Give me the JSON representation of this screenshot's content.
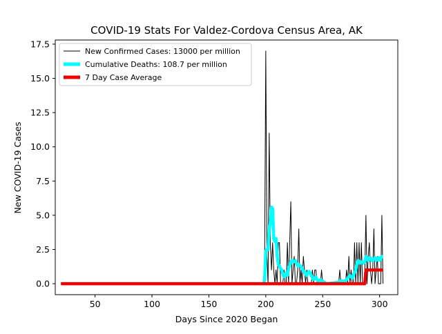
{
  "chart_data": {
    "type": "line",
    "title": "COVID-19 Stats For Valdez-Cordova Census Area, AK",
    "xlabel": "Days Since 2020 Began",
    "ylabel": "New COVID-19 Cases",
    "xlim": [
      15,
      316
    ],
    "ylim": [
      -0.8,
      17.8
    ],
    "xticks": [
      50,
      100,
      150,
      200,
      250,
      300
    ],
    "xtick_labels": [
      "50",
      "100",
      "150",
      "200",
      "250",
      "300"
    ],
    "yticks": [
      0,
      2.5,
      5,
      7.5,
      10,
      12.5,
      15,
      17.5
    ],
    "ytick_labels": [
      "0.0",
      "2.5",
      "5.0",
      "7.5",
      "10.0",
      "12.5",
      "15.0",
      "17.5"
    ],
    "grid": false,
    "legend_position": "top-left",
    "series": [
      {
        "name": "New Confirmed Cases: 13000 per million",
        "color": "#000000",
        "x": [
          20,
          198,
          199,
          200,
          201,
          202,
          203,
          204,
          205,
          206,
          207,
          208,
          209,
          210,
          211,
          212,
          213,
          214,
          215,
          216,
          217,
          218,
          219,
          220,
          221,
          222,
          223,
          224,
          225,
          226,
          227,
          228,
          229,
          230,
          231,
          232,
          233,
          234,
          235,
          236,
          237,
          238,
          239,
          240,
          241,
          242,
          243,
          244,
          245,
          246,
          247,
          248,
          249,
          250,
          251,
          252,
          253,
          264,
          265,
          266,
          267,
          268,
          269,
          270,
          271,
          272,
          273,
          274,
          275,
          276,
          277,
          278,
          279,
          280,
          281,
          282,
          283,
          284,
          285,
          286,
          287,
          288,
          289,
          290,
          291,
          292,
          293,
          294,
          295,
          296,
          297,
          298,
          299,
          300,
          301,
          302,
          303
        ],
        "y": [
          0,
          0,
          2,
          17,
          2,
          0,
          11,
          3,
          1,
          3,
          1,
          0,
          1,
          0,
          3,
          3,
          0,
          0,
          0,
          1,
          0,
          0,
          3,
          0,
          3,
          6,
          0,
          1,
          2,
          0,
          0,
          1,
          4,
          0,
          1,
          0,
          2,
          1,
          0,
          1,
          0,
          0,
          0,
          0,
          1,
          0,
          1,
          1,
          0,
          0,
          0,
          0,
          1,
          0,
          0,
          0,
          0,
          0,
          1,
          0,
          0,
          0,
          0,
          0,
          1,
          0,
          2,
          0,
          1,
          0,
          0,
          3,
          0,
          3,
          0,
          3,
          0,
          3,
          0,
          0,
          1,
          5,
          0,
          2,
          3,
          1,
          0,
          1,
          4,
          0,
          1,
          2,
          0,
          0,
          0,
          5,
          0
        ]
      },
      {
        "name": "Cumulative Deaths: 108.7 per million",
        "color": "#00ffff",
        "x": [
          198,
          199,
          200,
          201,
          202,
          203,
          204,
          205,
          206,
          207,
          208,
          209,
          210,
          211,
          212,
          213,
          214,
          215,
          216,
          217,
          218,
          219,
          220,
          221,
          222,
          223,
          224,
          225,
          226,
          227,
          228,
          229,
          230,
          231,
          232,
          233,
          234,
          235,
          236,
          237,
          238,
          239,
          240,
          241,
          242,
          243,
          244,
          245,
          246,
          247,
          248,
          249,
          250,
          251,
          252,
          253,
          264,
          265,
          266,
          267,
          268,
          269,
          270,
          271,
          272,
          273,
          274,
          275,
          276,
          277,
          278,
          279,
          280,
          281,
          282,
          283,
          284,
          285,
          286,
          287,
          288,
          289,
          290,
          291,
          292,
          293,
          294,
          295,
          296,
          297,
          298,
          299,
          300,
          301,
          302,
          303
        ],
        "y": [
          0,
          0.3,
          2.4,
          2.5,
          2.5,
          4.0,
          4.4,
          5.6,
          5.5,
          3.3,
          3.1,
          3.3,
          2.0,
          1.4,
          1.3,
          1.1,
          1.0,
          0.7,
          0.5,
          0.7,
          0.8,
          0.6,
          1.1,
          1.3,
          1.6,
          1.7,
          1.6,
          1.6,
          1.7,
          1.5,
          1.3,
          1.4,
          1.3,
          1.3,
          1.1,
          0.9,
          0.9,
          0.7,
          0.6,
          0.8,
          0.9,
          0.8,
          0.6,
          0.4,
          0.3,
          0.4,
          0.5,
          0.3,
          0.2,
          0.2,
          0.3,
          0.2,
          0.2,
          0.1,
          0.1,
          0.0,
          0.1,
          0.2,
          0.2,
          0.2,
          0.1,
          0.2,
          0.2,
          0.3,
          0.4,
          0.5,
          0.6,
          0.5,
          0.4,
          0.6,
          0.8,
          1.0,
          1.4,
          1.7,
          1.6,
          1.5,
          1.6,
          1.6,
          1.5,
          1.6,
          2.0,
          1.9,
          1.7,
          1.8,
          1.9,
          1.7,
          1.7,
          1.8,
          1.9,
          1.7,
          1.8,
          1.9,
          1.7,
          1.8,
          2.0,
          2.0
        ]
      },
      {
        "name": "7 Day Case Average",
        "color": "#ee0000",
        "x": [
          20,
          286,
          287,
          288,
          303
        ],
        "y": [
          0,
          0,
          0,
          1,
          1
        ]
      }
    ]
  }
}
